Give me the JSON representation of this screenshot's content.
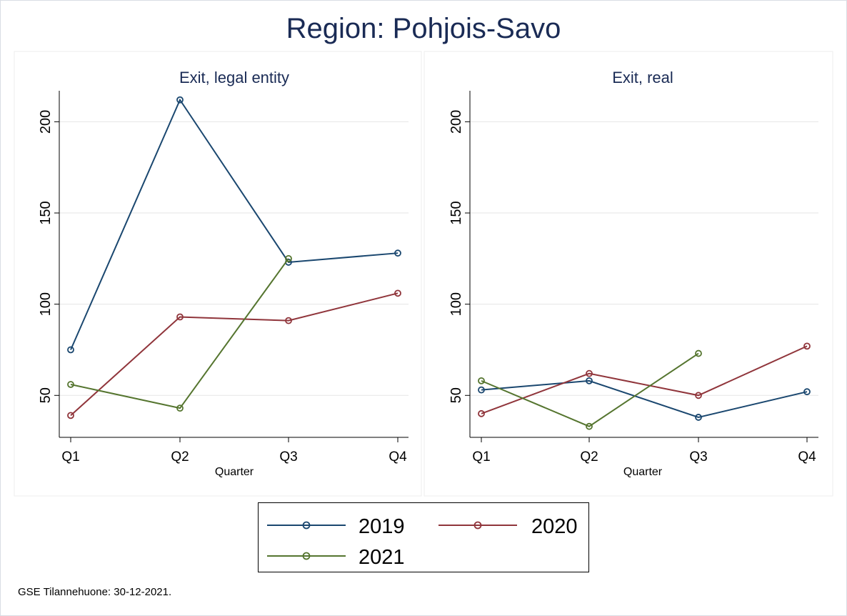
{
  "title": "Region: Pohjois-Savo",
  "footnote": "GSE Tilannehuone: 30-12-2021.",
  "colors": {
    "2019": "#1a476f",
    "2020": "#90353b",
    "2021": "#55752f",
    "grid": "#eaeaea"
  },
  "legend": {
    "items": [
      "2019",
      "2020",
      "2021"
    ]
  },
  "chart_data": [
    {
      "type": "line",
      "title": "Exit, legal entity",
      "xlabel": "Quarter",
      "ylabel": "",
      "categories": [
        "Q1",
        "Q2",
        "Q3",
        "Q4"
      ],
      "ylim": [
        27,
        217
      ],
      "yticks": [
        50,
        100,
        150,
        200
      ],
      "grid": true,
      "series": [
        {
          "name": "2019",
          "values": [
            75,
            212,
            123,
            128
          ]
        },
        {
          "name": "2020",
          "values": [
            39,
            93,
            91,
            106
          ]
        },
        {
          "name": "2021",
          "values": [
            56,
            43,
            125,
            null
          ]
        }
      ]
    },
    {
      "type": "line",
      "title": "Exit, real",
      "xlabel": "Quarter",
      "ylabel": "",
      "categories": [
        "Q1",
        "Q2",
        "Q3",
        "Q4"
      ],
      "ylim": [
        27,
        217
      ],
      "yticks": [
        50,
        100,
        150,
        200
      ],
      "grid": true,
      "series": [
        {
          "name": "2019",
          "values": [
            53,
            58,
            38,
            52
          ]
        },
        {
          "name": "2020",
          "values": [
            40,
            62,
            50,
            77
          ]
        },
        {
          "name": "2021",
          "values": [
            58,
            33,
            73,
            null
          ]
        }
      ]
    }
  ]
}
